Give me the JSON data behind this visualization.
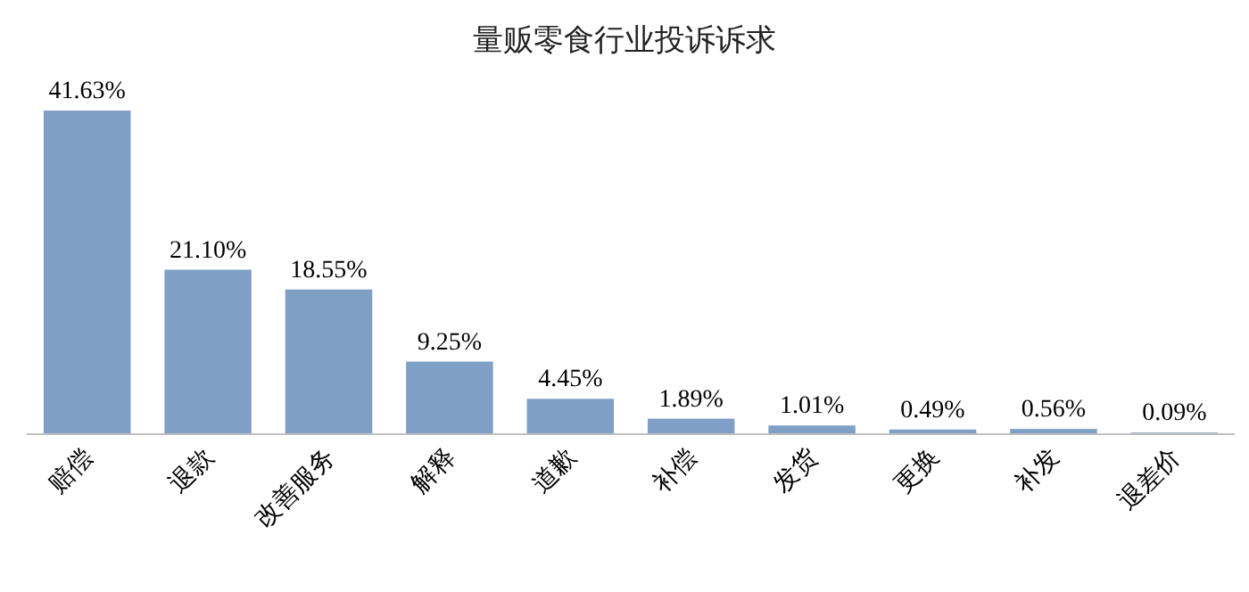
{
  "chart_data": {
    "type": "bar",
    "title": "量贩零食行业投诉诉求",
    "categories": [
      "赔偿",
      "退款",
      "改善服务",
      "解释",
      "道歉",
      "补偿",
      "发货",
      "更换",
      "补发",
      "退差价"
    ],
    "values": [
      41.63,
      21.1,
      18.55,
      9.25,
      4.45,
      1.89,
      1.01,
      0.49,
      0.56,
      0.09
    ],
    "value_labels": [
      "41.63%",
      "21.10%",
      "18.55%",
      "9.25%",
      "4.45%",
      "1.89%",
      "1.01%",
      "0.49%",
      "0.56%",
      "0.09%"
    ],
    "color": "#7f9fc6"
  }
}
